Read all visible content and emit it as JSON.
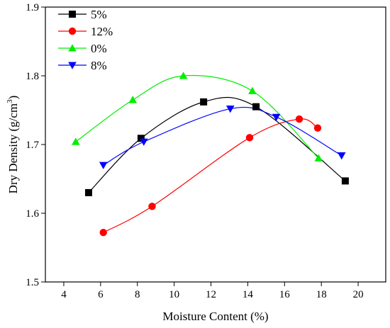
{
  "chart_data": {
    "type": "line",
    "xlabel": "Moisture Content (%)",
    "ylabel_main": "Dry Density (g/cm",
    "ylabel_sup": "3",
    "ylabel_close": ")",
    "xlim": [
      3,
      21.5
    ],
    "ylim": [
      1.5,
      1.9
    ],
    "xticks": [
      4,
      6,
      8,
      10,
      12,
      14,
      16,
      18,
      20
    ],
    "yticks": [
      1.5,
      1.6,
      1.7,
      1.8,
      1.9
    ],
    "xtick_labels": [
      "4",
      "6",
      "8",
      "10",
      "12",
      "14",
      "16",
      "18",
      "20"
    ],
    "ytick_labels": [
      "1.5",
      "1.6",
      "1.7",
      "1.8",
      "1.9"
    ],
    "legend_position": "top-left",
    "grid": false,
    "series": [
      {
        "name": "5%",
        "color": "#000000",
        "marker": "square",
        "x": [
          5.35,
          8.2,
          11.6,
          14.45,
          19.3
        ],
        "y": [
          1.63,
          1.709,
          1.762,
          1.755,
          1.647
        ]
      },
      {
        "name": "12%",
        "color": "#ff0000",
        "marker": "circle",
        "x": [
          6.15,
          8.8,
          14.1,
          16.8,
          17.8
        ],
        "y": [
          1.572,
          1.61,
          1.71,
          1.737,
          1.724
        ]
      },
      {
        "name": "0%",
        "color": "#00ee00",
        "marker": "triangle-up",
        "x": [
          4.65,
          7.75,
          10.5,
          14.25,
          17.85
        ],
        "y": [
          1.704,
          1.765,
          1.8,
          1.778,
          1.68
        ]
      },
      {
        "name": "8%",
        "color": "#0000ff",
        "marker": "triangle-down",
        "x": [
          6.15,
          8.35,
          13.05,
          15.55,
          19.1
        ],
        "y": [
          1.67,
          1.704,
          1.752,
          1.74,
          1.684
        ]
      }
    ]
  }
}
